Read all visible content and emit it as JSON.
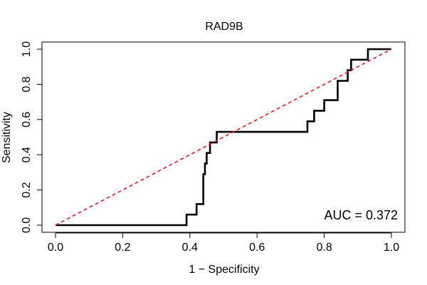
{
  "chart_data": {
    "type": "line",
    "title": "RAD9B",
    "xlabel": "1 − Specificity",
    "ylabel": "Sensitivity",
    "xlim": [
      0,
      1
    ],
    "ylim": [
      0,
      1
    ],
    "x_ticks": [
      "0.0",
      "0.2",
      "0.4",
      "0.6",
      "0.8",
      "1.0"
    ],
    "y_ticks": [
      "0.0",
      "0.2",
      "0.4",
      "0.6",
      "0.8",
      "1.0"
    ],
    "grid": false,
    "annotation": "AUC = 0.372",
    "series": [
      {
        "color": "#000000",
        "style": "solid",
        "x": [
          0.0,
          0.39,
          0.39,
          0.42,
          0.42,
          0.44,
          0.44,
          0.445,
          0.445,
          0.45,
          0.45,
          0.46,
          0.46,
          0.48,
          0.48,
          0.52,
          0.52,
          0.75,
          0.75,
          0.77,
          0.77,
          0.8,
          0.8,
          0.84,
          0.84,
          0.87,
          0.87,
          0.88,
          0.88,
          0.93,
          0.93,
          1.0
        ],
        "y": [
          0.0,
          0.0,
          0.06,
          0.06,
          0.12,
          0.12,
          0.29,
          0.29,
          0.35,
          0.35,
          0.41,
          0.41,
          0.47,
          0.47,
          0.53,
          0.53,
          0.53,
          0.53,
          0.59,
          0.59,
          0.65,
          0.65,
          0.71,
          0.71,
          0.82,
          0.82,
          0.88,
          0.88,
          0.94,
          0.94,
          1.0,
          1.0
        ]
      },
      {
        "color": "#e41a1c",
        "style": "dashed",
        "x": [
          0.0,
          1.0
        ],
        "y": [
          0.0,
          1.0
        ]
      }
    ]
  }
}
